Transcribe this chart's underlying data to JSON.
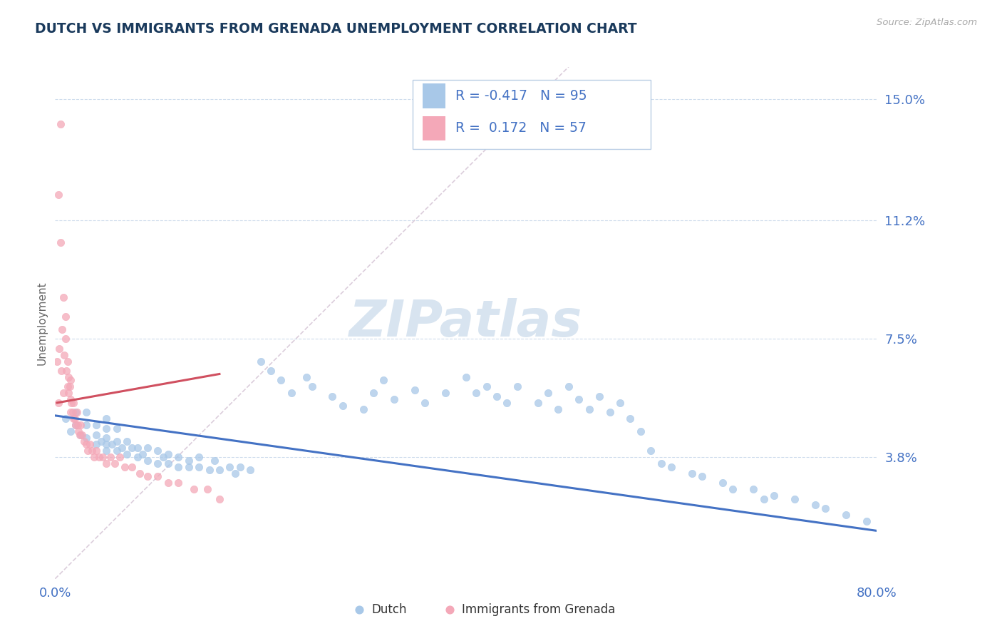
{
  "title": "DUTCH VS IMMIGRANTS FROM GRENADA UNEMPLOYMENT CORRELATION CHART",
  "source_text": "Source: ZipAtlas.com",
  "ylabel": "Unemployment",
  "xlim": [
    0,
    0.8
  ],
  "ylim": [
    0,
    0.16
  ],
  "yticks": [
    0.038,
    0.075,
    0.112,
    0.15
  ],
  "ytick_labels": [
    "3.8%",
    "7.5%",
    "11.2%",
    "15.0%"
  ],
  "xtick_labels": [
    "0.0%",
    "80.0%"
  ],
  "xtick_pos": [
    0.0,
    0.8
  ],
  "legend_dutch_R": "-0.417",
  "legend_dutch_N": "95",
  "legend_grenada_R": "0.172",
  "legend_grenada_N": "57",
  "dutch_color": "#a8c8e8",
  "grenada_color": "#f4a8b8",
  "trendline_dutch_color": "#4472c4",
  "trendline_grenada_color": "#d05060",
  "ref_line_color": "#d8c8d8",
  "title_color": "#1a3a5c",
  "tick_label_color": "#4472c4",
  "watermark_color": "#d8e4f0",
  "dutch_scatter_x": [
    0.01,
    0.015,
    0.02,
    0.02,
    0.025,
    0.03,
    0.03,
    0.03,
    0.04,
    0.04,
    0.04,
    0.045,
    0.05,
    0.05,
    0.05,
    0.05,
    0.05,
    0.055,
    0.06,
    0.06,
    0.06,
    0.065,
    0.07,
    0.07,
    0.075,
    0.08,
    0.08,
    0.085,
    0.09,
    0.09,
    0.1,
    0.1,
    0.105,
    0.11,
    0.11,
    0.12,
    0.12,
    0.13,
    0.13,
    0.14,
    0.14,
    0.15,
    0.155,
    0.16,
    0.17,
    0.175,
    0.18,
    0.19,
    0.2,
    0.21,
    0.22,
    0.23,
    0.245,
    0.25,
    0.27,
    0.28,
    0.3,
    0.31,
    0.32,
    0.33,
    0.35,
    0.36,
    0.38,
    0.4,
    0.41,
    0.42,
    0.43,
    0.44,
    0.45,
    0.47,
    0.48,
    0.49,
    0.5,
    0.51,
    0.52,
    0.53,
    0.54,
    0.55,
    0.56,
    0.57,
    0.58,
    0.59,
    0.6,
    0.62,
    0.63,
    0.65,
    0.66,
    0.68,
    0.69,
    0.7,
    0.72,
    0.74,
    0.75,
    0.77,
    0.79
  ],
  "dutch_scatter_y": [
    0.05,
    0.046,
    0.048,
    0.052,
    0.045,
    0.044,
    0.048,
    0.052,
    0.042,
    0.045,
    0.048,
    0.043,
    0.04,
    0.042,
    0.044,
    0.047,
    0.05,
    0.042,
    0.04,
    0.043,
    0.047,
    0.041,
    0.039,
    0.043,
    0.041,
    0.038,
    0.041,
    0.039,
    0.037,
    0.041,
    0.036,
    0.04,
    0.038,
    0.036,
    0.039,
    0.035,
    0.038,
    0.035,
    0.037,
    0.035,
    0.038,
    0.034,
    0.037,
    0.034,
    0.035,
    0.033,
    0.035,
    0.034,
    0.068,
    0.065,
    0.062,
    0.058,
    0.063,
    0.06,
    0.057,
    0.054,
    0.053,
    0.058,
    0.062,
    0.056,
    0.059,
    0.055,
    0.058,
    0.063,
    0.058,
    0.06,
    0.057,
    0.055,
    0.06,
    0.055,
    0.058,
    0.053,
    0.06,
    0.056,
    0.053,
    0.057,
    0.052,
    0.055,
    0.05,
    0.046,
    0.04,
    0.036,
    0.035,
    0.033,
    0.032,
    0.03,
    0.028,
    0.028,
    0.025,
    0.026,
    0.025,
    0.023,
    0.022,
    0.02,
    0.018
  ],
  "grenada_scatter_x": [
    0.002,
    0.003,
    0.004,
    0.005,
    0.005,
    0.006,
    0.007,
    0.008,
    0.008,
    0.009,
    0.01,
    0.01,
    0.011,
    0.012,
    0.012,
    0.013,
    0.013,
    0.014,
    0.015,
    0.015,
    0.015,
    0.016,
    0.017,
    0.018,
    0.018,
    0.019,
    0.02,
    0.021,
    0.022,
    0.023,
    0.024,
    0.025,
    0.026,
    0.028,
    0.03,
    0.032,
    0.034,
    0.036,
    0.038,
    0.04,
    0.043,
    0.046,
    0.05,
    0.054,
    0.058,
    0.063,
    0.068,
    0.075,
    0.082,
    0.09,
    0.1,
    0.11,
    0.12,
    0.135,
    0.148,
    0.16,
    0.003
  ],
  "grenada_scatter_y": [
    0.068,
    0.055,
    0.072,
    0.105,
    0.142,
    0.065,
    0.078,
    0.058,
    0.088,
    0.07,
    0.075,
    0.082,
    0.065,
    0.06,
    0.068,
    0.058,
    0.063,
    0.06,
    0.052,
    0.056,
    0.062,
    0.055,
    0.052,
    0.05,
    0.055,
    0.05,
    0.048,
    0.052,
    0.048,
    0.046,
    0.045,
    0.048,
    0.045,
    0.043,
    0.042,
    0.04,
    0.042,
    0.04,
    0.038,
    0.04,
    0.038,
    0.038,
    0.036,
    0.038,
    0.036,
    0.038,
    0.035,
    0.035,
    0.033,
    0.032,
    0.032,
    0.03,
    0.03,
    0.028,
    0.028,
    0.025,
    0.12
  ],
  "dutch_trend_x": [
    0.0,
    0.8
  ],
  "dutch_trend_y": [
    0.051,
    0.015
  ],
  "grenada_trend_x": [
    0.002,
    0.16
  ],
  "grenada_trend_y": [
    0.055,
    0.064
  ],
  "ref_line_x1": 0.0,
  "ref_line_y1": 0.0,
  "ref_line_x2": 0.5,
  "ref_line_y2": 0.16
}
